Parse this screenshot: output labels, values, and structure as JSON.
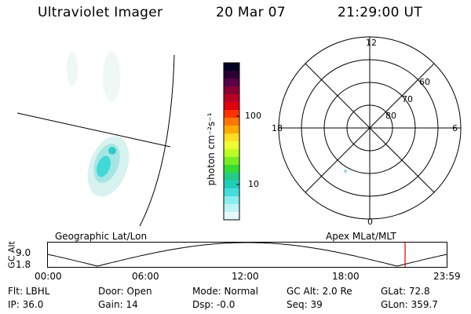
{
  "header": {
    "instrument": "Ultraviolet Imager",
    "date": "20 Mar 07",
    "time": "21:29:00 UT"
  },
  "colorbar": {
    "unit_label": "photon cm⁻²s⁻¹",
    "ticks": [
      "100",
      "10"
    ],
    "colors": [
      "#000022",
      "#2a0033",
      "#5a0048",
      "#880033",
      "#b80022",
      "#e00010",
      "#ff3300",
      "#ff7700",
      "#ffaa00",
      "#ffdd22",
      "#eeff33",
      "#bbff22",
      "#77ee22",
      "#33dd33",
      "#22cc88",
      "#22ccbb",
      "#44dddd",
      "#88eeee",
      "#bbf4f4",
      "#e4fafa"
    ]
  },
  "polar": {
    "mlt_labels": {
      "top": "12",
      "bottom": "0",
      "left": "18",
      "right": "6"
    },
    "lat_labels": [
      "60",
      "70",
      "80"
    ]
  },
  "timeline": {
    "left_title": "Geographic Lat/Lon",
    "right_title": "Apex MLat/MLT",
    "axis_label": "GC Alt",
    "y_ticks": [
      "9.0",
      "1.8"
    ],
    "x_ticks": [
      "00:00",
      "06:00",
      "12:00",
      "18:00",
      "23:59"
    ],
    "current_marker_hours": 21.48
  },
  "status": {
    "flt": "Flt: LBHL",
    "ip": "IP: 36.0",
    "door": "Door: Open",
    "gain": "Gain: 14",
    "mode": "Mode: Normal",
    "dsp": "Dsp:   -0.0",
    "gc_alt": "GC Alt: 2.0 Re",
    "seq": "Seq: 39",
    "glat": "GLat:  72.8",
    "glon": "GLon: 359.7"
  }
}
